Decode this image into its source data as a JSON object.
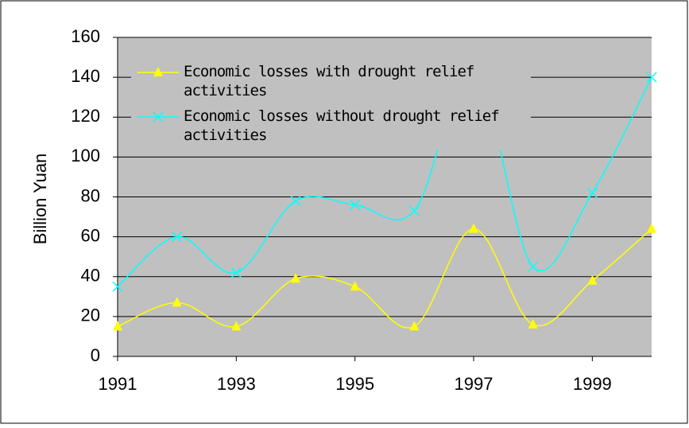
{
  "chart_data": {
    "type": "line",
    "y_label": "Billion Yuan",
    "x": [
      1991,
      1992,
      1993,
      1994,
      1995,
      1996,
      1997,
      1998,
      1999,
      2000
    ],
    "xlim": [
      1991,
      2000
    ],
    "xticks": [
      1991,
      1993,
      1995,
      1997,
      1999
    ],
    "ylim": [
      0,
      160
    ],
    "yticks": [
      0,
      20,
      40,
      60,
      80,
      100,
      120,
      140,
      160
    ],
    "grid": true,
    "smooth": true,
    "legend": "upper-left",
    "series": [
      {
        "name": "Economic losses with drought relief activities",
        "color": "#ffff00",
        "marker": "triangle",
        "values": [
          15,
          27,
          15,
          39,
          35,
          15,
          64,
          16,
          38,
          64
        ]
      },
      {
        "name": "Economic losses without drought relief activities",
        "color": "#00ffff",
        "marker": "x",
        "values": [
          35,
          60,
          42,
          78,
          76,
          73,
          144,
          45,
          82,
          140
        ]
      }
    ]
  }
}
